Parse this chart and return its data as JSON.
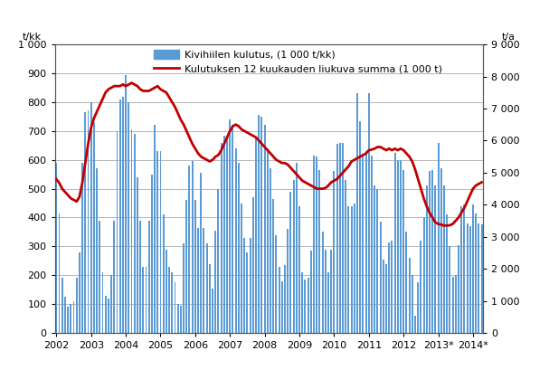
{
  "title": "",
  "ylabel_left": "t/kk",
  "ylabel_right": "t/a",
  "ylim_left": [
    0,
    1000
  ],
  "ylim_right": [
    0,
    9000
  ],
  "yticks_left": [
    0,
    100,
    200,
    300,
    400,
    500,
    600,
    700,
    800,
    900,
    1000
  ],
  "yticks_right": [
    0,
    1000,
    2000,
    3000,
    4000,
    5000,
    6000,
    7000,
    8000,
    9000
  ],
  "ytick_labels_left": [
    "0",
    "100",
    "200",
    "300",
    "400",
    "500",
    "600",
    "700",
    "800",
    "900",
    "1 000"
  ],
  "ytick_labels_right": [
    "0",
    "1 000",
    "2 000",
    "3 000",
    "4 000",
    "5 000",
    "6 000",
    "7 000",
    "8 000",
    "9 000"
  ],
  "bar_color": "#5B9BD5",
  "line_color": "#C00000",
  "legend_bar": "Kivihiilen kulutus, (1 000 t/kk)",
  "legend_line": "Kulutuksen 12 kuukauden liukuva summa (1 000 t)",
  "bar_width": 0.6,
  "bar_values": [
    590,
    415,
    190,
    125,
    90,
    100,
    110,
    190,
    280,
    590,
    765,
    770,
    800,
    730,
    570,
    390,
    210,
    130,
    120,
    200,
    390,
    700,
    810,
    820,
    895,
    800,
    705,
    690,
    540,
    390,
    230,
    230,
    390,
    550,
    720,
    630,
    630,
    410,
    290,
    230,
    210,
    175,
    100,
    95,
    310,
    460,
    580,
    595,
    460,
    365,
    555,
    365,
    310,
    240,
    155,
    355,
    500,
    660,
    685,
    680,
    740,
    720,
    640,
    590,
    450,
    330,
    280,
    330,
    470,
    680,
    755,
    750,
    720,
    640,
    570,
    465,
    340,
    230,
    180,
    235,
    360,
    490,
    530,
    590,
    440,
    210,
    185,
    190,
    285,
    615,
    610,
    565,
    350,
    290,
    210,
    290,
    560,
    655,
    660,
    660,
    530,
    440,
    440,
    450,
    830,
    735,
    620,
    630,
    830,
    615,
    510,
    500,
    385,
    255,
    240,
    315,
    320,
    625,
    600,
    600,
    565,
    350,
    260,
    200,
    60,
    175,
    320,
    400,
    510,
    560,
    565,
    510,
    660,
    570,
    510,
    410,
    300,
    195,
    200,
    305,
    440,
    445,
    380,
    370,
    445,
    415,
    380,
    375
  ],
  "line_values": [
    4800,
    4680,
    4500,
    4400,
    4300,
    4200,
    4150,
    4100,
    4250,
    4700,
    5300,
    5900,
    6400,
    6700,
    6900,
    7100,
    7300,
    7500,
    7600,
    7650,
    7700,
    7700,
    7700,
    7750,
    7700,
    7750,
    7800,
    7750,
    7700,
    7600,
    7550,
    7550,
    7550,
    7600,
    7650,
    7700,
    7600,
    7550,
    7500,
    7350,
    7200,
    7050,
    6850,
    6650,
    6500,
    6300,
    6100,
    5900,
    5750,
    5600,
    5500,
    5450,
    5400,
    5350,
    5400,
    5500,
    5550,
    5700,
    5900,
    6100,
    6300,
    6450,
    6500,
    6450,
    6350,
    6300,
    6250,
    6200,
    6150,
    6100,
    6000,
    5900,
    5800,
    5700,
    5600,
    5500,
    5400,
    5350,
    5300,
    5300,
    5250,
    5150,
    5050,
    4950,
    4850,
    4750,
    4700,
    4650,
    4600,
    4550,
    4500,
    4500,
    4500,
    4520,
    4600,
    4700,
    4750,
    4800,
    4900,
    5000,
    5100,
    5200,
    5350,
    5400,
    5450,
    5500,
    5550,
    5600,
    5700,
    5720,
    5750,
    5800,
    5800,
    5750,
    5700,
    5750,
    5700,
    5750,
    5700,
    5750,
    5700,
    5600,
    5500,
    5350,
    5100,
    4800,
    4500,
    4200,
    3950,
    3750,
    3600,
    3450,
    3400,
    3380,
    3350,
    3350,
    3360,
    3400,
    3500,
    3600,
    3750,
    3900,
    4100,
    4300,
    4500,
    4600,
    4650,
    4700
  ],
  "year_tick_labels": [
    "2002",
    "2003",
    "2004",
    "2005",
    "2006",
    "2007",
    "2008",
    "2009",
    "2010",
    "2011",
    "2012",
    "2013*",
    "2014*"
  ],
  "background_color": "#FFFFFF",
  "grid_color": "#999999",
  "spine_color": "#555555",
  "tick_fontsize": 8,
  "legend_fontsize": 8
}
